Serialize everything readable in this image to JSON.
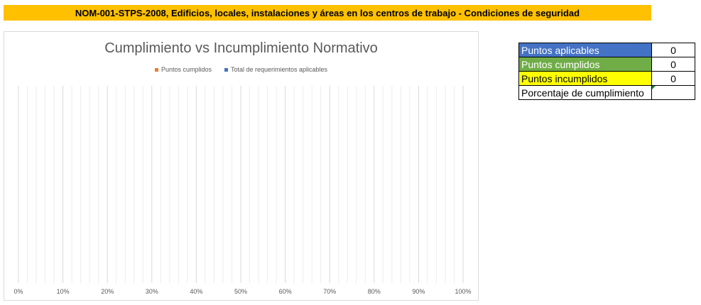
{
  "header": {
    "title": "NOM-001-STPS-2008, Edificios, locales, instalaciones y áreas en los centros de trabajo - Condiciones de seguridad"
  },
  "chart_data": {
    "type": "bar",
    "orientation": "horizontal",
    "stacked": true,
    "title": "Cumplimiento vs Incumplimiento Normativo",
    "legend_position": "top",
    "series": [
      {
        "name": "Puntos cumplidos",
        "color": "#ed7d31",
        "values": []
      },
      {
        "name": "Total de requerimientos aplicables",
        "color": "#4472c4",
        "values": []
      }
    ],
    "categories": [],
    "x_ticks": [
      "0%",
      "10%",
      "20%",
      "30%",
      "40%",
      "50%",
      "60%",
      "70%",
      "80%",
      "90%",
      "100%"
    ],
    "xlim": [
      0,
      1
    ],
    "gridlines": "vertical",
    "gridline_color": "#d9d9d9"
  },
  "summary": {
    "rows": [
      {
        "label": "Puntos aplicables",
        "value": "0"
      },
      {
        "label": "Puntos cumplidos",
        "value": "0"
      },
      {
        "label": "Puntos incumplidos",
        "value": "0"
      },
      {
        "label": "Porcentaje de cumplimiento",
        "value": ""
      }
    ],
    "colors": {
      "aplicables": "#4472c4",
      "cumplidos": "#70ad47",
      "incumplidos": "#ffff00"
    }
  }
}
